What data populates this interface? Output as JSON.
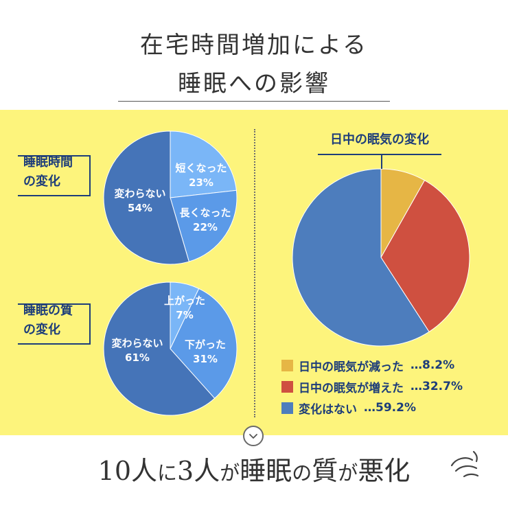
{
  "header": {
    "title_line1": "在宅時間増加による",
    "title_line2": "睡眠への影響"
  },
  "chart_data": [
    {
      "type": "pie",
      "title": "睡眠時間の変化",
      "title_lines": [
        "睡眠時間",
        "の変化"
      ],
      "slices": [
        {
          "label": "短くなった",
          "value_text": "23%",
          "value": 23,
          "color": "#7ab6f7"
        },
        {
          "label": "長くなった",
          "value_text": "22%",
          "value": 22,
          "color": "#5b9ae8"
        },
        {
          "label": "変わらない",
          "value_text": "54%",
          "value": 54,
          "color": "#4574b8"
        }
      ]
    },
    {
      "type": "pie",
      "title": "睡眠の質の変化",
      "title_lines": [
        "睡眠の質",
        "の変化"
      ],
      "slices": [
        {
          "label": "上がった",
          "value_text": "7%",
          "value": 7,
          "color": "#7ab6f7"
        },
        {
          "label": "下がった",
          "value_text": "31%",
          "value": 31,
          "color": "#5b9ae8"
        },
        {
          "label": "変わらない",
          "value_text": "61%",
          "value": 61,
          "color": "#4574b8"
        }
      ]
    },
    {
      "type": "pie",
      "title": "日中の眠気の変化",
      "slices": [
        {
          "label": "日中の眠気が減った",
          "value_text": "…8.2%",
          "value": 8.2,
          "color": "#e6b645"
        },
        {
          "label": "日中の眠気が増えた",
          "value_text": "…32.7%",
          "value": 32.7,
          "color": "#cf5040"
        },
        {
          "label": "変化はない",
          "value_text": "…59.2%",
          "value": 59.2,
          "color": "#4d7dbd"
        }
      ],
      "legend": "bottom-left"
    }
  ],
  "footer": {
    "headline_parts": [
      "10人",
      "に",
      "3人",
      "が",
      "睡眠",
      "の",
      "質",
      "が",
      "悪化"
    ]
  },
  "icons": {
    "chevron": "chevron-down-icon",
    "sigh": "sigh-icon"
  }
}
